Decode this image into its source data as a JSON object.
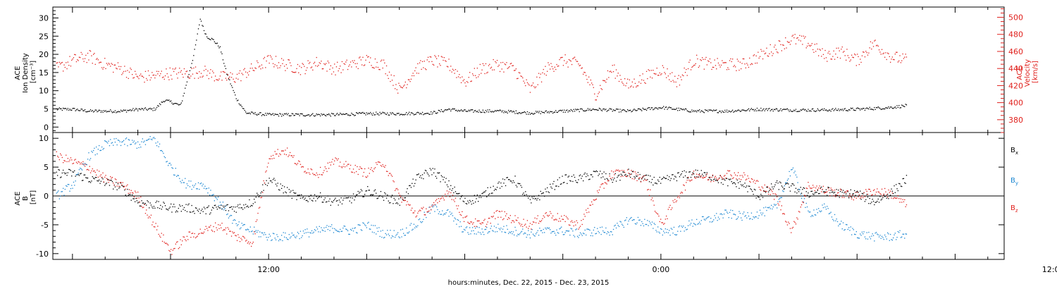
{
  "xlabel": "hours:minutes, Dec. 22, 2015 - Dec. 23, 2015",
  "chart_data": [
    {
      "type": "scatter",
      "panel": "top",
      "ylabel_left_lines": [
        "ACE",
        "Ion Density",
        "[cm⁻³]"
      ],
      "ylabel_right_lines": [
        "ACE",
        "Velocity",
        "[km/s]"
      ],
      "x_axis": {
        "unit": "hours since Dec. 22, 2015 00:00",
        "range": [
          5.4,
          34.5
        ],
        "tick_labels": [
          {
            "x": 12,
            "label": "12:00"
          },
          {
            "x": 24,
            "label": "0:00"
          },
          {
            "x": 36,
            "label": "12:00"
          }
        ]
      },
      "ylim_left": [
        -1.5,
        33
      ],
      "yticks_left": [
        0,
        5,
        10,
        15,
        20,
        25,
        30
      ],
      "ylim_right": [
        365,
        512
      ],
      "yticks_right": [
        380,
        400,
        420,
        440,
        460,
        480,
        500
      ],
      "data_end_x": 31.5,
      "series": [
        {
          "axis": "left",
          "color": "#000000",
          "x": [
            5.5,
            6.0,
            6.5,
            7.0,
            7.5,
            8.0,
            8.5,
            8.8,
            9.0,
            9.3,
            9.5,
            9.7,
            9.9,
            10.0,
            10.1,
            10.3,
            10.5,
            10.7,
            11.0,
            11.3,
            12.0,
            13.0,
            14.0,
            15.0,
            16.0,
            17.0,
            17.5,
            18.0,
            19.0,
            20.0,
            21.0,
            22.0,
            23.0,
            24.0,
            25.0,
            26.0,
            27.0,
            28.0,
            29.0,
            30.0,
            31.0,
            31.5
          ],
          "y": [
            5.0,
            5.0,
            4.5,
            4.5,
            4.5,
            5.0,
            5.0,
            7.5,
            7.0,
            6.0,
            13.0,
            20.0,
            30.0,
            27.0,
            25.0,
            24.0,
            22.0,
            15.0,
            8.0,
            4.0,
            3.5,
            3.5,
            3.5,
            3.8,
            3.8,
            4.0,
            5.0,
            4.5,
            4.5,
            4.0,
            4.5,
            5.0,
            4.5,
            5.5,
            4.5,
            4.5,
            5.0,
            4.8,
            4.8,
            5.0,
            5.5,
            6.0
          ]
        },
        {
          "axis": "right",
          "color": "#e0201c",
          "x": [
            5.5,
            6.0,
            6.5,
            7.0,
            7.5,
            8.0,
            8.5,
            9.0,
            9.5,
            10.0,
            10.5,
            11.0,
            11.5,
            12.0,
            12.5,
            13.0,
            13.5,
            14.0,
            14.5,
            15.0,
            15.5,
            16.0,
            16.5,
            17.0,
            17.5,
            18.0,
            18.5,
            19.0,
            19.5,
            20.0,
            20.5,
            21.0,
            21.5,
            22.0,
            22.5,
            23.0,
            23.5,
            24.0,
            24.5,
            25.0,
            25.5,
            26.0,
            26.5,
            27.0,
            27.5,
            28.0,
            28.5,
            29.0,
            29.5,
            30.0,
            30.5,
            31.0,
            31.5
          ],
          "y": [
            440,
            450,
            455,
            445,
            440,
            430,
            432,
            435,
            435,
            437,
            430,
            430,
            440,
            450,
            445,
            440,
            448,
            440,
            445,
            450,
            445,
            415,
            440,
            450,
            445,
            425,
            440,
            445,
            440,
            415,
            440,
            450,
            445,
            410,
            440,
            420,
            430,
            440,
            425,
            450,
            445,
            445,
            445,
            455,
            465,
            475,
            470,
            455,
            460,
            450,
            470,
            455,
            450
          ]
        }
      ]
    },
    {
      "type": "scatter",
      "panel": "bottom",
      "ylabel_left_lines": [
        "ACE",
        "B",
        "[nT]"
      ],
      "x_axis": {
        "unit": "hours since Dec. 22, 2015 00:00",
        "range": [
          5.4,
          34.5
        ],
        "tick_labels": [
          {
            "x": 12,
            "label": "12:00"
          },
          {
            "x": 24,
            "label": "0:00"
          },
          {
            "x": 36,
            "label": "12:00"
          }
        ]
      },
      "ylim": [
        -11,
        11
      ],
      "yticks": [
        -10,
        -5,
        0,
        5,
        10
      ],
      "zero_line": true,
      "data_end_x": 31.5,
      "series": [
        {
          "name": "B",
          "subscript": "x",
          "color": "#000000",
          "x": [
            5.5,
            6.0,
            6.5,
            7.0,
            7.5,
            8.0,
            8.5,
            9.0,
            9.5,
            10.0,
            10.5,
            11.0,
            11.5,
            12.0,
            12.5,
            13.0,
            13.5,
            14.0,
            14.5,
            15.0,
            15.5,
            16.0,
            16.5,
            17.0,
            17.5,
            18.0,
            18.5,
            19.0,
            19.5,
            20.0,
            20.5,
            21.0,
            21.5,
            22.0,
            22.5,
            23.0,
            23.5,
            24.0,
            24.5,
            25.0,
            25.5,
            26.0,
            26.5,
            27.0,
            27.5,
            28.0,
            28.5,
            29.0,
            29.5,
            30.0,
            30.5,
            31.0,
            31.5
          ],
          "y": [
            4.0,
            4.0,
            3.0,
            2.5,
            1.5,
            -1.0,
            -1.5,
            -2.0,
            -2.0,
            -2.5,
            -2.0,
            -2.0,
            -1.0,
            3.0,
            1.0,
            -0.5,
            0.0,
            -1.0,
            -0.5,
            1.0,
            0.0,
            -1.0,
            3.0,
            4.5,
            2.0,
            -1.0,
            0.0,
            2.0,
            3.0,
            -1.0,
            1.0,
            3.0,
            3.0,
            4.0,
            3.0,
            4.0,
            3.0,
            2.5,
            3.5,
            4.0,
            3.5,
            2.5,
            2.0,
            0.0,
            2.0,
            1.5,
            0.5,
            1.0,
            0.5,
            0.5,
            -1.0,
            0.5,
            3.0
          ]
        },
        {
          "name": "B",
          "subscript": "y",
          "color": "#1a86d1",
          "x": [
            5.5,
            6.0,
            6.5,
            7.0,
            7.5,
            8.0,
            8.5,
            9.0,
            9.5,
            10.0,
            10.5,
            11.0,
            11.5,
            12.0,
            12.5,
            13.0,
            13.5,
            14.0,
            14.5,
            15.0,
            15.5,
            16.0,
            16.5,
            17.0,
            17.5,
            18.0,
            18.5,
            19.0,
            19.5,
            20.0,
            20.5,
            21.0,
            21.5,
            22.0,
            22.5,
            23.0,
            23.5,
            24.0,
            24.5,
            25.0,
            25.5,
            26.0,
            26.5,
            27.0,
            27.5,
            28.0,
            28.5,
            29.0,
            29.5,
            30.0,
            30.5,
            31.0,
            31.5
          ],
          "y": [
            0.0,
            2.0,
            7.0,
            9.0,
            9.5,
            9.0,
            10.0,
            5.0,
            2.0,
            2.0,
            -1.0,
            -5.0,
            -6.0,
            -7.0,
            -7.0,
            -6.5,
            -6.0,
            -5.5,
            -6.0,
            -5.0,
            -6.5,
            -6.5,
            -5.0,
            -2.0,
            -3.0,
            -6.0,
            -6.0,
            -5.5,
            -6.0,
            -6.5,
            -6.0,
            -6.0,
            -6.5,
            -6.0,
            -6.0,
            -4.0,
            -4.5,
            -6.0,
            -6.0,
            -4.5,
            -4.0,
            -3.0,
            -3.5,
            -3.0,
            -2.0,
            5.0,
            -3.0,
            -2.0,
            -5.0,
            -6.5,
            -7.0,
            -7.0,
            -6.5
          ]
        },
        {
          "name": "B",
          "subscript": "z",
          "color": "#e0201c",
          "x": [
            5.5,
            6.0,
            6.5,
            7.0,
            7.5,
            8.0,
            8.5,
            9.0,
            9.5,
            10.0,
            10.5,
            11.0,
            11.5,
            12.0,
            12.5,
            13.0,
            13.5,
            14.0,
            14.5,
            15.0,
            15.5,
            16.0,
            16.5,
            17.0,
            17.5,
            18.0,
            18.5,
            19.0,
            19.5,
            20.0,
            20.5,
            21.0,
            21.5,
            22.0,
            22.5,
            23.0,
            23.5,
            24.0,
            24.5,
            25.0,
            25.5,
            26.0,
            26.5,
            27.0,
            27.5,
            28.0,
            28.5,
            29.0,
            29.5,
            30.0,
            30.5,
            31.0,
            31.5
          ],
          "y": [
            7.0,
            6.0,
            5.0,
            3.0,
            2.0,
            0.0,
            -5.0,
            -9.5,
            -7.0,
            -6.0,
            -5.0,
            -7.0,
            -8.0,
            7.0,
            8.0,
            5.0,
            4.0,
            6.0,
            5.0,
            4.0,
            6.0,
            0.0,
            -3.0,
            -2.0,
            1.0,
            -4.0,
            -5.0,
            -3.0,
            -4.0,
            -5.0,
            -3.0,
            -4.0,
            -5.0,
            0.0,
            4.0,
            4.0,
            3.0,
            -5.0,
            0.0,
            4.0,
            3.0,
            4.0,
            3.5,
            2.0,
            0.0,
            -6.0,
            2.0,
            1.0,
            0.5,
            0.0,
            1.0,
            0.5,
            -1.5
          ]
        }
      ]
    }
  ]
}
